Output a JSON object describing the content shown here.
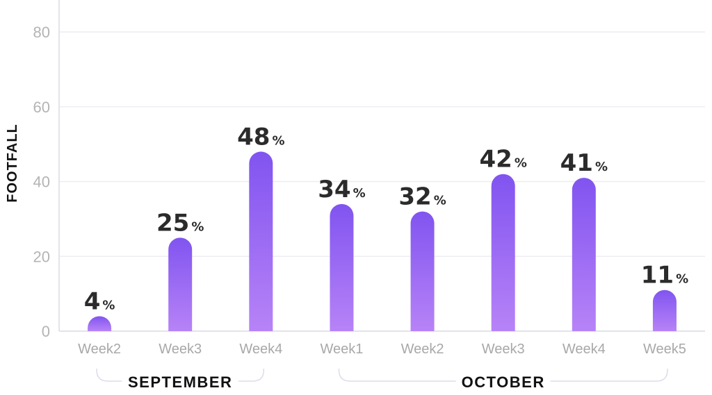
{
  "chart_data": {
    "type": "bar",
    "ylabel": "FOOTFALL",
    "xlabel": "",
    "ylim": [
      0,
      85
    ],
    "yticks": [
      0,
      20,
      40,
      60,
      80
    ],
    "grid": true,
    "categories": [
      "Week2",
      "Week3",
      "Week4",
      "Week1",
      "Week2",
      "Week3",
      "Week4",
      "Week5"
    ],
    "values": [
      4,
      25,
      48,
      34,
      32,
      42,
      41,
      11
    ],
    "value_suffix": "%",
    "groups": [
      {
        "label": "SEPTEMBER",
        "start": 0,
        "end": 2
      },
      {
        "label": "OCTOBER",
        "start": 3,
        "end": 7
      }
    ],
    "colors": {
      "bar_top": "#8154f0",
      "bar_bottom": "#b783f7",
      "grid": "#ececf3",
      "bracket": "#dcdcec"
    }
  }
}
